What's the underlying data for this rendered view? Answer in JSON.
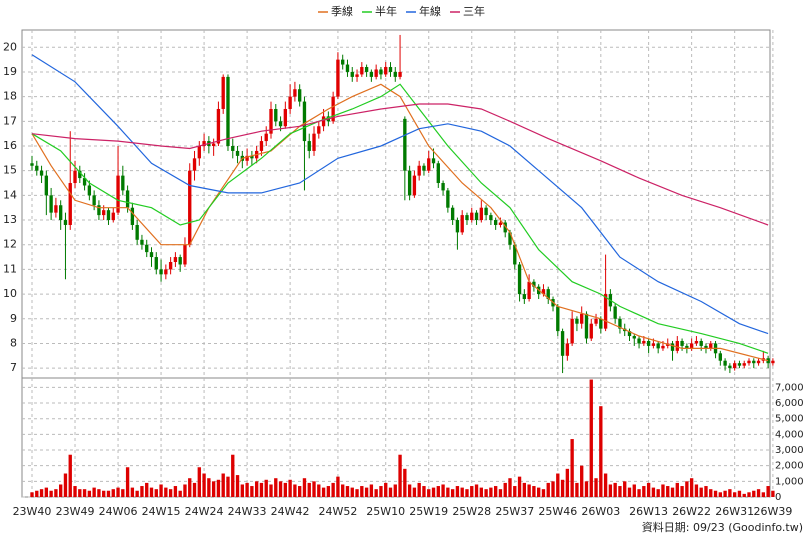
{
  "chart_data": {
    "type": "candlestick",
    "categories": [
      "23W40",
      null,
      null,
      null,
      null,
      null,
      null,
      null,
      null,
      "23W49",
      null,
      null,
      null,
      null,
      null,
      null,
      null,
      null,
      "24W06",
      null,
      null,
      null,
      null,
      null,
      null,
      null,
      null,
      "24W15",
      null,
      null,
      null,
      null,
      null,
      null,
      null,
      null,
      "24W24",
      null,
      null,
      null,
      null,
      null,
      null,
      null,
      null,
      "24W33",
      null,
      null,
      null,
      null,
      null,
      null,
      null,
      null,
      "24W42",
      null,
      null,
      null,
      null,
      null,
      null,
      null,
      null,
      null,
      "24W52",
      null,
      null,
      null,
      null,
      null,
      null,
      null,
      null,
      null,
      "25W10",
      null,
      null,
      null,
      null,
      null,
      null,
      null,
      null,
      "25W19",
      null,
      null,
      null,
      null,
      null,
      null,
      null,
      null,
      "25W28",
      null,
      null,
      null,
      null,
      null,
      null,
      null,
      null,
      "25W37",
      null,
      null,
      null,
      null,
      null,
      null,
      null,
      null,
      "25W46",
      null,
      null,
      null,
      null,
      null,
      null,
      null,
      null,
      "26W03",
      null,
      null,
      null,
      null,
      null,
      null,
      null,
      null,
      null,
      "26W13",
      null,
      null,
      null,
      null,
      null,
      null,
      null,
      null,
      "26W22",
      null,
      null,
      null,
      null,
      null,
      null,
      null,
      null,
      "26W31",
      null,
      null,
      null,
      null,
      null,
      null,
      null,
      "26W39"
    ],
    "ohlc": [
      [
        15.3,
        15.6,
        15.0,
        15.2
      ],
      [
        15.2,
        15.4,
        14.8,
        15.0
      ],
      [
        15.0,
        15.2,
        14.5,
        14.8
      ],
      [
        14.8,
        15.0,
        13.2,
        14.0
      ],
      [
        14.0,
        14.3,
        13.0,
        13.3
      ],
      [
        13.3,
        13.9,
        13.1,
        13.6
      ],
      [
        13.6,
        13.8,
        12.6,
        13.0
      ],
      [
        13.0,
        13.3,
        10.6,
        12.8
      ],
      [
        12.8,
        16.6,
        12.6,
        14.5
      ],
      [
        14.5,
        15.4,
        14.3,
        15.0
      ],
      [
        15.0,
        15.2,
        14.5,
        14.7
      ],
      [
        14.7,
        14.9,
        14.2,
        14.4
      ],
      [
        14.4,
        14.6,
        13.8,
        14.0
      ],
      [
        14.0,
        14.2,
        13.4,
        13.6
      ],
      [
        13.6,
        13.8,
        13.0,
        13.2
      ],
      [
        13.2,
        13.6,
        13.0,
        13.4
      ],
      [
        13.4,
        13.5,
        12.8,
        13.0
      ],
      [
        13.0,
        13.5,
        12.9,
        13.3
      ],
      [
        13.3,
        16.0,
        13.2,
        14.8
      ],
      [
        14.8,
        15.2,
        14.0,
        14.2
      ],
      [
        14.2,
        14.4,
        13.3,
        13.5
      ],
      [
        13.5,
        13.7,
        12.6,
        12.8
      ],
      [
        12.8,
        13.0,
        12.0,
        12.2
      ],
      [
        12.2,
        12.4,
        11.8,
        12.0
      ],
      [
        12.0,
        12.2,
        11.5,
        11.7
      ],
      [
        11.7,
        11.9,
        11.1,
        11.5
      ],
      [
        11.5,
        11.7,
        10.8,
        11.0
      ],
      [
        11.0,
        11.4,
        10.5,
        10.8
      ],
      [
        10.8,
        11.2,
        10.6,
        11.0
      ],
      [
        11.0,
        11.5,
        10.8,
        11.3
      ],
      [
        11.3,
        11.7,
        11.1,
        11.5
      ],
      [
        11.5,
        11.6,
        10.9,
        11.2
      ],
      [
        11.2,
        12.3,
        11.1,
        12.0
      ],
      [
        12.0,
        15.3,
        11.9,
        15.0
      ],
      [
        15.0,
        15.8,
        14.6,
        15.5
      ],
      [
        15.5,
        16.2,
        15.2,
        16.0
      ],
      [
        16.0,
        16.5,
        15.8,
        16.2
      ],
      [
        16.2,
        16.4,
        15.7,
        16.0
      ],
      [
        16.0,
        16.3,
        15.6,
        16.1
      ],
      [
        16.1,
        17.8,
        16.0,
        17.5
      ],
      [
        17.5,
        18.9,
        17.3,
        18.8
      ],
      [
        18.8,
        18.9,
        15.8,
        16.0
      ],
      [
        16.0,
        16.3,
        15.5,
        15.8
      ],
      [
        15.8,
        16.0,
        15.3,
        15.6
      ],
      [
        15.6,
        15.8,
        15.1,
        15.4
      ],
      [
        15.4,
        15.9,
        15.2,
        15.6
      ],
      [
        15.6,
        15.8,
        15.2,
        15.5
      ],
      [
        15.5,
        16.0,
        15.3,
        15.8
      ],
      [
        15.8,
        16.4,
        15.6,
        16.2
      ],
      [
        16.2,
        16.8,
        16.0,
        16.5
      ],
      [
        16.5,
        17.8,
        16.3,
        17.5
      ],
      [
        17.5,
        17.7,
        16.8,
        17.0
      ],
      [
        17.0,
        17.2,
        16.6,
        16.8
      ],
      [
        16.8,
        17.8,
        16.7,
        17.5
      ],
      [
        17.5,
        18.5,
        17.3,
        18.0
      ],
      [
        18.0,
        18.6,
        17.8,
        18.3
      ],
      [
        18.3,
        18.5,
        17.6,
        17.8
      ],
      [
        17.8,
        18.0,
        14.2,
        16.2
      ],
      [
        16.2,
        16.5,
        15.5,
        15.8
      ],
      [
        15.8,
        16.8,
        15.6,
        16.5
      ],
      [
        16.5,
        17.0,
        16.3,
        16.8
      ],
      [
        16.8,
        17.5,
        16.6,
        17.2
      ],
      [
        17.2,
        17.4,
        16.8,
        17.0
      ],
      [
        17.0,
        18.2,
        16.9,
        18.0
      ],
      [
        18.0,
        19.8,
        17.9,
        19.5
      ],
      [
        19.5,
        19.7,
        19.1,
        19.3
      ],
      [
        19.3,
        19.5,
        18.8,
        19.0
      ],
      [
        19.0,
        19.2,
        18.6,
        18.8
      ],
      [
        18.8,
        19.1,
        18.6,
        18.9
      ],
      [
        18.9,
        19.4,
        18.8,
        19.2
      ],
      [
        19.2,
        19.3,
        18.8,
        19.0
      ],
      [
        19.0,
        19.1,
        18.6,
        18.8
      ],
      [
        18.8,
        19.3,
        18.7,
        19.1
      ],
      [
        19.1,
        19.2,
        18.7,
        18.9
      ],
      [
        18.9,
        19.4,
        18.8,
        19.2
      ],
      [
        19.2,
        19.4,
        18.8,
        19.0
      ],
      [
        19.0,
        19.2,
        18.6,
        18.8
      ],
      [
        18.8,
        20.5,
        18.7,
        19.0
      ],
      [
        17.1,
        17.2,
        13.8,
        15.0
      ],
      [
        15.0,
        15.2,
        13.8,
        14.0
      ],
      [
        14.0,
        15.0,
        13.9,
        14.8
      ],
      [
        14.8,
        15.4,
        14.6,
        15.2
      ],
      [
        15.2,
        15.3,
        14.8,
        15.0
      ],
      [
        15.0,
        15.8,
        14.9,
        15.5
      ],
      [
        15.5,
        15.9,
        15.1,
        15.3
      ],
      [
        15.3,
        15.4,
        14.3,
        14.5
      ],
      [
        14.5,
        14.6,
        14.0,
        14.2
      ],
      [
        14.2,
        14.3,
        13.3,
        13.5
      ],
      [
        13.5,
        13.6,
        12.8,
        13.0
      ],
      [
        13.0,
        13.1,
        11.8,
        12.5
      ],
      [
        12.5,
        13.4,
        12.4,
        13.2
      ],
      [
        13.2,
        13.3,
        12.8,
        13.0
      ],
      [
        13.0,
        13.5,
        12.9,
        13.3
      ],
      [
        13.3,
        13.4,
        12.8,
        13.0
      ],
      [
        13.0,
        13.8,
        12.9,
        13.5
      ],
      [
        13.5,
        13.6,
        13.0,
        13.2
      ],
      [
        13.2,
        13.3,
        12.8,
        13.0
      ],
      [
        13.0,
        13.1,
        12.6,
        12.8
      ],
      [
        12.8,
        13.1,
        12.7,
        12.9
      ],
      [
        12.9,
        13.0,
        12.3,
        12.5
      ],
      [
        12.5,
        12.6,
        11.8,
        12.0
      ],
      [
        12.0,
        12.1,
        11.0,
        11.2
      ],
      [
        11.2,
        11.3,
        9.7,
        10.0
      ],
      [
        10.0,
        10.2,
        9.6,
        9.8
      ],
      [
        9.8,
        10.8,
        9.7,
        10.5
      ],
      [
        10.5,
        10.6,
        10.1,
        10.3
      ],
      [
        10.3,
        10.4,
        9.8,
        10.0
      ],
      [
        10.0,
        10.4,
        9.9,
        10.2
      ],
      [
        10.2,
        10.3,
        9.6,
        9.8
      ],
      [
        9.8,
        9.9,
        9.3,
        9.5
      ],
      [
        9.5,
        9.6,
        8.3,
        8.5
      ],
      [
        8.5,
        8.6,
        6.8,
        7.5
      ],
      [
        7.5,
        8.2,
        7.3,
        8.0
      ],
      [
        8.0,
        9.3,
        7.9,
        9.0
      ],
      [
        9.0,
        9.1,
        8.5,
        8.8
      ],
      [
        8.8,
        9.5,
        8.6,
        9.2
      ],
      [
        9.2,
        9.3,
        8.0,
        8.2
      ],
      [
        8.2,
        9.0,
        8.1,
        8.8
      ],
      [
        8.8,
        9.2,
        8.7,
        9.0
      ],
      [
        9.0,
        9.1,
        8.4,
        8.6
      ],
      [
        8.6,
        11.6,
        8.5,
        10.0
      ],
      [
        10.0,
        10.2,
        9.3,
        9.5
      ],
      [
        9.5,
        9.6,
        8.8,
        9.0
      ],
      [
        9.0,
        9.1,
        8.4,
        8.6
      ],
      [
        8.6,
        8.8,
        8.3,
        8.5
      ],
      [
        8.5,
        8.6,
        8.1,
        8.3
      ],
      [
        8.3,
        8.4,
        7.9,
        8.2
      ],
      [
        8.2,
        8.3,
        7.8,
        8.0
      ],
      [
        8.0,
        8.3,
        7.9,
        8.1
      ],
      [
        8.1,
        8.2,
        7.6,
        7.9
      ],
      [
        7.9,
        8.2,
        7.8,
        8.0
      ],
      [
        8.0,
        8.1,
        7.6,
        7.8
      ],
      [
        7.8,
        8.1,
        7.7,
        7.9
      ],
      [
        7.9,
        8.2,
        7.8,
        8.0
      ],
      [
        8.0,
        8.1,
        7.3,
        7.7
      ],
      [
        7.7,
        8.3,
        7.6,
        8.1
      ],
      [
        8.1,
        8.2,
        7.7,
        7.9
      ],
      [
        7.9,
        8.0,
        7.6,
        7.8
      ],
      [
        7.8,
        8.2,
        7.7,
        8.0
      ],
      [
        8.0,
        8.3,
        7.9,
        8.1
      ],
      [
        8.1,
        8.2,
        7.7,
        7.9
      ],
      [
        7.9,
        8.0,
        7.6,
        7.8
      ],
      [
        7.8,
        8.1,
        7.7,
        8.0
      ],
      [
        8.0,
        8.1,
        7.4,
        7.6
      ],
      [
        7.6,
        7.7,
        7.1,
        7.3
      ],
      [
        7.3,
        7.4,
        6.9,
        7.1
      ],
      [
        7.1,
        7.2,
        6.8,
        7.0
      ],
      [
        7.0,
        7.3,
        6.9,
        7.2
      ],
      [
        7.2,
        7.3,
        7.0,
        7.1
      ],
      [
        7.1,
        7.3,
        7.0,
        7.2
      ],
      [
        7.2,
        7.4,
        7.1,
        7.3
      ],
      [
        7.3,
        7.4,
        7.0,
        7.2
      ],
      [
        7.2,
        7.4,
        7.1,
        7.3
      ],
      [
        7.3,
        7.7,
        7.2,
        7.4
      ],
      [
        7.4,
        7.5,
        7.0,
        7.2
      ],
      [
        7.2,
        7.4,
        7.1,
        7.3
      ]
    ],
    "up_color": "#e00000",
    "down_color": "#007a00",
    "ylim": [
      6.6,
      20.7
    ],
    "yticks": [
      7,
      8,
      9,
      10,
      11,
      12,
      13,
      14,
      15,
      16,
      17,
      18,
      19,
      20
    ],
    "grid": true,
    "lines": [
      {
        "name": "季線",
        "color": "#e07020",
        "x": [
          0,
          4,
          9,
          14,
          20,
          27,
          33,
          37,
          44,
          50,
          56,
          62,
          67,
          73,
          77,
          83,
          90,
          96,
          100,
          104,
          110,
          119,
          127,
          136,
          144,
          154
        ],
        "values": [
          16.5,
          15.2,
          13.8,
          13.5,
          13.5,
          12.0,
          12.0,
          13.5,
          15.5,
          15.8,
          16.8,
          17.5,
          18.0,
          18.5,
          18.0,
          16.0,
          14.5,
          13.5,
          12.5,
          10.5,
          9.5,
          9.0,
          8.3,
          7.8,
          7.8,
          7.3
        ]
      },
      {
        "name": "半年",
        "color": "#22cc22",
        "x": [
          0,
          6,
          12,
          18,
          25,
          31,
          35,
          41,
          48,
          54,
          60,
          67,
          73,
          77,
          81,
          87,
          94,
          100,
          106,
          113,
          119,
          123,
          131,
          140,
          148,
          154
        ],
        "values": [
          16.5,
          15.8,
          14.5,
          13.8,
          13.5,
          12.8,
          13.0,
          14.5,
          15.5,
          16.5,
          17.0,
          17.5,
          18.0,
          18.5,
          17.5,
          16.0,
          14.5,
          13.5,
          11.8,
          10.5,
          10.0,
          9.5,
          8.8,
          8.4,
          8.0,
          7.6
        ]
      },
      {
        "name": "年線",
        "color": "#2266dd",
        "x": [
          0,
          9,
          18,
          25,
          33,
          41,
          48,
          56,
          64,
          73,
          81,
          87,
          94,
          100,
          106,
          115,
          123,
          131,
          140,
          148,
          154
        ],
        "values": [
          19.7,
          18.6,
          16.8,
          15.3,
          14.4,
          14.1,
          14.1,
          14.5,
          15.5,
          16.0,
          16.7,
          16.9,
          16.6,
          16.0,
          15.0,
          13.5,
          11.5,
          10.5,
          9.7,
          8.8,
          8.4
        ]
      },
      {
        "name": "三年",
        "color": "#cc2266",
        "x": [
          0,
          9,
          18,
          27,
          33,
          41,
          48,
          56,
          64,
          73,
          81,
          87,
          94,
          100,
          108,
          119,
          127,
          136,
          144,
          154
        ],
        "values": [
          16.5,
          16.3,
          16.2,
          16.0,
          15.9,
          16.3,
          16.6,
          16.8,
          17.2,
          17.5,
          17.7,
          17.7,
          17.5,
          17.0,
          16.3,
          15.4,
          14.7,
          14.0,
          13.5,
          12.8
        ]
      }
    ],
    "legend": "top",
    "volume": {
      "color": "#dd0000",
      "ylim": [
        0,
        7600
      ],
      "yticks": [
        0,
        {
          "value": 1000,
          "label": "1,000"
        },
        {
          "value": 2000,
          "label": "2,000"
        },
        {
          "value": 3000,
          "label": "3,000"
        },
        {
          "value": 4000,
          "label": "4,000"
        },
        {
          "value": 5000,
          "label": "5,000"
        },
        {
          "value": 6000,
          "label": "6,000"
        },
        {
          "value": 7000,
          "label": "7,000"
        }
      ],
      "values": [
        300,
        400,
        500,
        600,
        400,
        500,
        800,
        1500,
        2700,
        700,
        500,
        500,
        400,
        600,
        500,
        400,
        400,
        500,
        600,
        500,
        1900,
        600,
        400,
        700,
        900,
        600,
        500,
        800,
        600,
        500,
        700,
        400,
        800,
        1200,
        900,
        1900,
        1500,
        1200,
        1000,
        1100,
        1500,
        1300,
        2700,
        1400,
        800,
        900,
        700,
        1000,
        900,
        1100,
        800,
        1200,
        1000,
        900,
        1100,
        800,
        700,
        1200,
        900,
        1000,
        800,
        600,
        700,
        900,
        1300,
        800,
        700,
        600,
        500,
        700,
        600,
        800,
        500,
        700,
        900,
        600,
        800,
        2700,
        1800,
        800,
        600,
        900,
        700,
        500,
        600,
        700,
        800,
        600,
        500,
        700,
        600,
        500,
        700,
        800,
        600,
        500,
        600,
        700,
        500,
        900,
        1200,
        700,
        1300,
        900,
        800,
        700,
        600,
        500,
        900,
        1000,
        1500,
        1100,
        1800,
        3700,
        900,
        2000,
        1000,
        7500,
        1200,
        5800,
        1500,
        800,
        900,
        700,
        1000,
        600,
        800,
        500,
        700,
        900,
        600,
        500,
        800,
        700,
        600,
        900,
        700,
        1000,
        1200,
        800,
        600,
        700,
        500,
        400,
        300,
        400,
        500,
        300,
        400,
        200,
        300,
        400,
        500,
        300,
        700,
        400
      ]
    },
    "source": "資料日期: 09/23  (Goodinfo.tw)"
  }
}
